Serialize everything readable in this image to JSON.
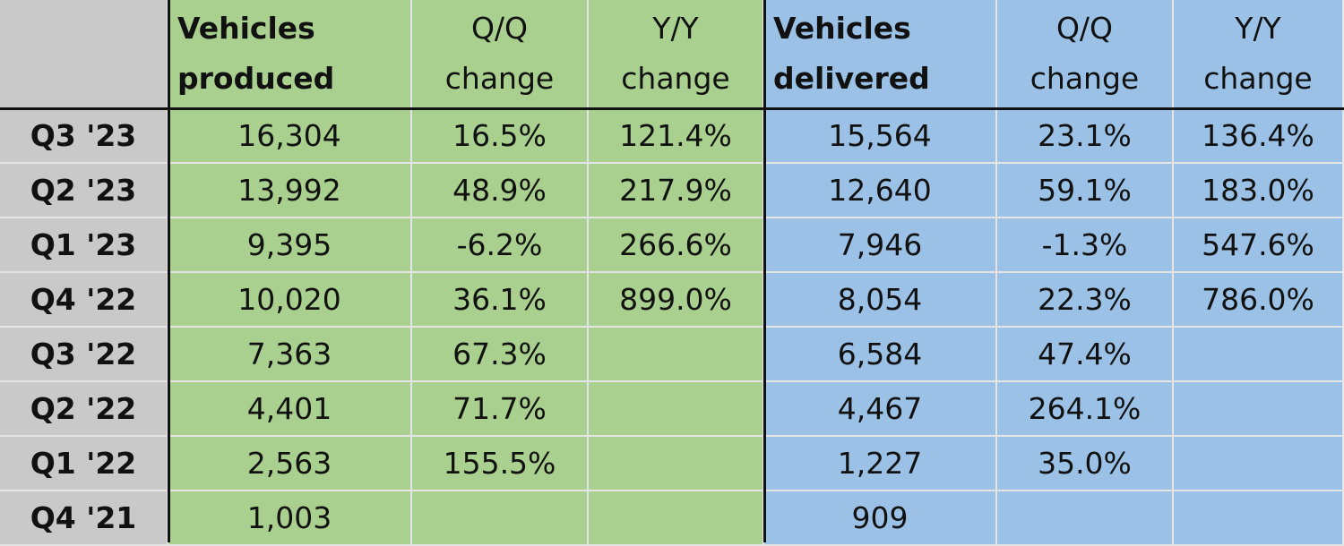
{
  "table": {
    "header": [
      [
        "Vehicles",
        "produced"
      ],
      [
        "Q/Q",
        "change"
      ],
      [
        "Y/Y",
        "change"
      ],
      [
        "Vehicles",
        "delivered"
      ],
      [
        "Q/Q",
        "change"
      ],
      [
        "Y/Y",
        "change"
      ]
    ],
    "rows": [
      [
        "Q3 '23",
        "16,304",
        "16.5%",
        "121.4%",
        "15,564",
        "23.1%",
        "136.4%"
      ],
      [
        "Q2 '23",
        "13,992",
        "48.9%",
        "217.9%",
        "12,640",
        "59.1%",
        "183.0%"
      ],
      [
        "Q1 '23",
        "9,395",
        "-6.2%",
        "266.6%",
        "7,946",
        "-1.3%",
        "547.6%"
      ],
      [
        "Q4 '22",
        "10,020",
        "36.1%",
        "899.0%",
        "8,054",
        "22.3%",
        "786.0%"
      ],
      [
        "Q3 '22",
        "7,363",
        "67.3%",
        null,
        "6,584",
        "47.4%",
        null
      ],
      [
        "Q2 '22",
        "4,401",
        "71.7%",
        null,
        "4,467",
        "264.1%",
        null
      ],
      [
        "Q1 '22",
        "2,563",
        "155.5%",
        null,
        "1,227",
        "35.0%",
        null
      ],
      [
        "Q4 '21",
        "1,003",
        null,
        null,
        "909",
        null,
        null
      ]
    ]
  }
}
